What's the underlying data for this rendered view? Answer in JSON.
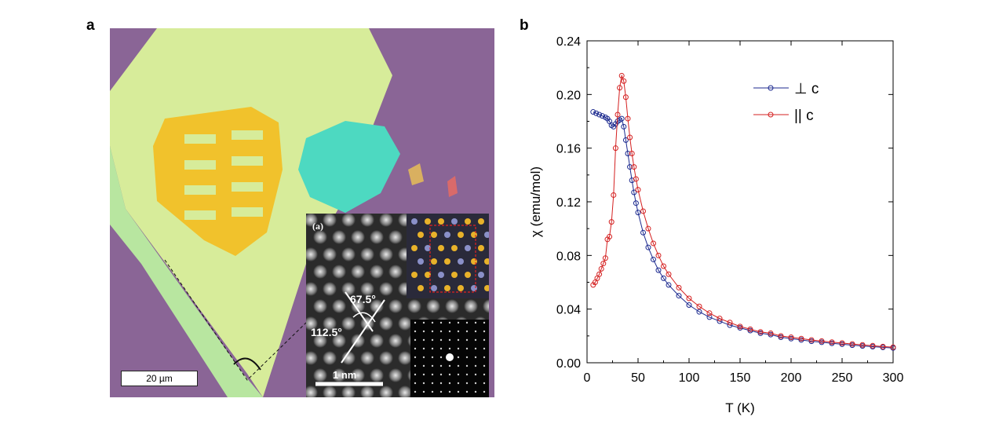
{
  "panels": {
    "a_label": "a",
    "b_label": "b"
  },
  "micrograph": {
    "scale_bar_label": "20 µm",
    "inset": {
      "panel_label": "(a)",
      "angle_1": "67.5°",
      "angle_2": "112.5°",
      "scale_label": "1 nm"
    },
    "colors": {
      "substrate": "#8a6596",
      "flake_light": "#d7ec9a",
      "flake_edge": "#b8e6a0",
      "electrode": "#f1c22c",
      "thin_flake": "#4dd9c1"
    }
  },
  "chart_data": {
    "type": "line",
    "xlabel": "T (K)",
    "ylabel": "χ (emu/mol)",
    "xlim": [
      0,
      300
    ],
    "ylim": [
      0.0,
      0.24
    ],
    "xticks": [
      0,
      50,
      100,
      150,
      200,
      250,
      300
    ],
    "yticks": [
      0.0,
      0.04,
      0.08,
      0.12,
      0.16,
      0.2,
      0.24
    ],
    "xtick_labels": [
      "0",
      "50",
      "100",
      "150",
      "200",
      "250",
      "300"
    ],
    "ytick_labels": [
      "0.00",
      "0.04",
      "0.08",
      "0.12",
      "0.16",
      "0.20",
      "0.24"
    ],
    "legend_position": "top-right",
    "series": [
      {
        "name": "⊥ c",
        "color": "#1c2a8f",
        "x": [
          6,
          9,
          12,
          15,
          18,
          20,
          22,
          24,
          26,
          28,
          30,
          32,
          34,
          36,
          38,
          40,
          42,
          44,
          46,
          48,
          50,
          55,
          60,
          65,
          70,
          75,
          80,
          90,
          100,
          110,
          120,
          130,
          140,
          150,
          160,
          170,
          180,
          190,
          200,
          210,
          220,
          230,
          240,
          250,
          260,
          270,
          280,
          290,
          300
        ],
        "y": [
          0.187,
          0.186,
          0.185,
          0.184,
          0.183,
          0.182,
          0.18,
          0.177,
          0.176,
          0.178,
          0.18,
          0.181,
          0.182,
          0.176,
          0.166,
          0.156,
          0.146,
          0.136,
          0.127,
          0.119,
          0.112,
          0.097,
          0.086,
          0.077,
          0.069,
          0.063,
          0.058,
          0.05,
          0.043,
          0.038,
          0.034,
          0.031,
          0.028,
          0.026,
          0.024,
          0.022,
          0.021,
          0.019,
          0.018,
          0.017,
          0.016,
          0.0153,
          0.0145,
          0.0138,
          0.0131,
          0.0125,
          0.012,
          0.0115,
          0.011
        ]
      },
      {
        "name": "|| c",
        "color": "#d42020",
        "x": [
          6,
          8,
          10,
          12,
          14,
          16,
          18,
          20,
          22,
          24,
          26,
          28,
          30,
          32,
          34,
          36,
          38,
          40,
          42,
          44,
          46,
          48,
          50,
          55,
          60,
          65,
          70,
          75,
          80,
          90,
          100,
          110,
          120,
          130,
          140,
          150,
          160,
          170,
          180,
          190,
          200,
          210,
          220,
          230,
          240,
          250,
          260,
          270,
          280,
          290,
          300
        ],
        "y": [
          0.058,
          0.06,
          0.063,
          0.066,
          0.07,
          0.074,
          0.078,
          0.092,
          0.094,
          0.105,
          0.125,
          0.16,
          0.185,
          0.205,
          0.214,
          0.21,
          0.198,
          0.182,
          0.168,
          0.156,
          0.146,
          0.137,
          0.129,
          0.113,
          0.1,
          0.089,
          0.08,
          0.072,
          0.066,
          0.056,
          0.048,
          0.042,
          0.037,
          0.033,
          0.03,
          0.027,
          0.025,
          0.023,
          0.022,
          0.02,
          0.019,
          0.018,
          0.017,
          0.0162,
          0.0154,
          0.0147,
          0.014,
          0.0133,
          0.0127,
          0.0121,
          0.0116
        ]
      }
    ]
  }
}
